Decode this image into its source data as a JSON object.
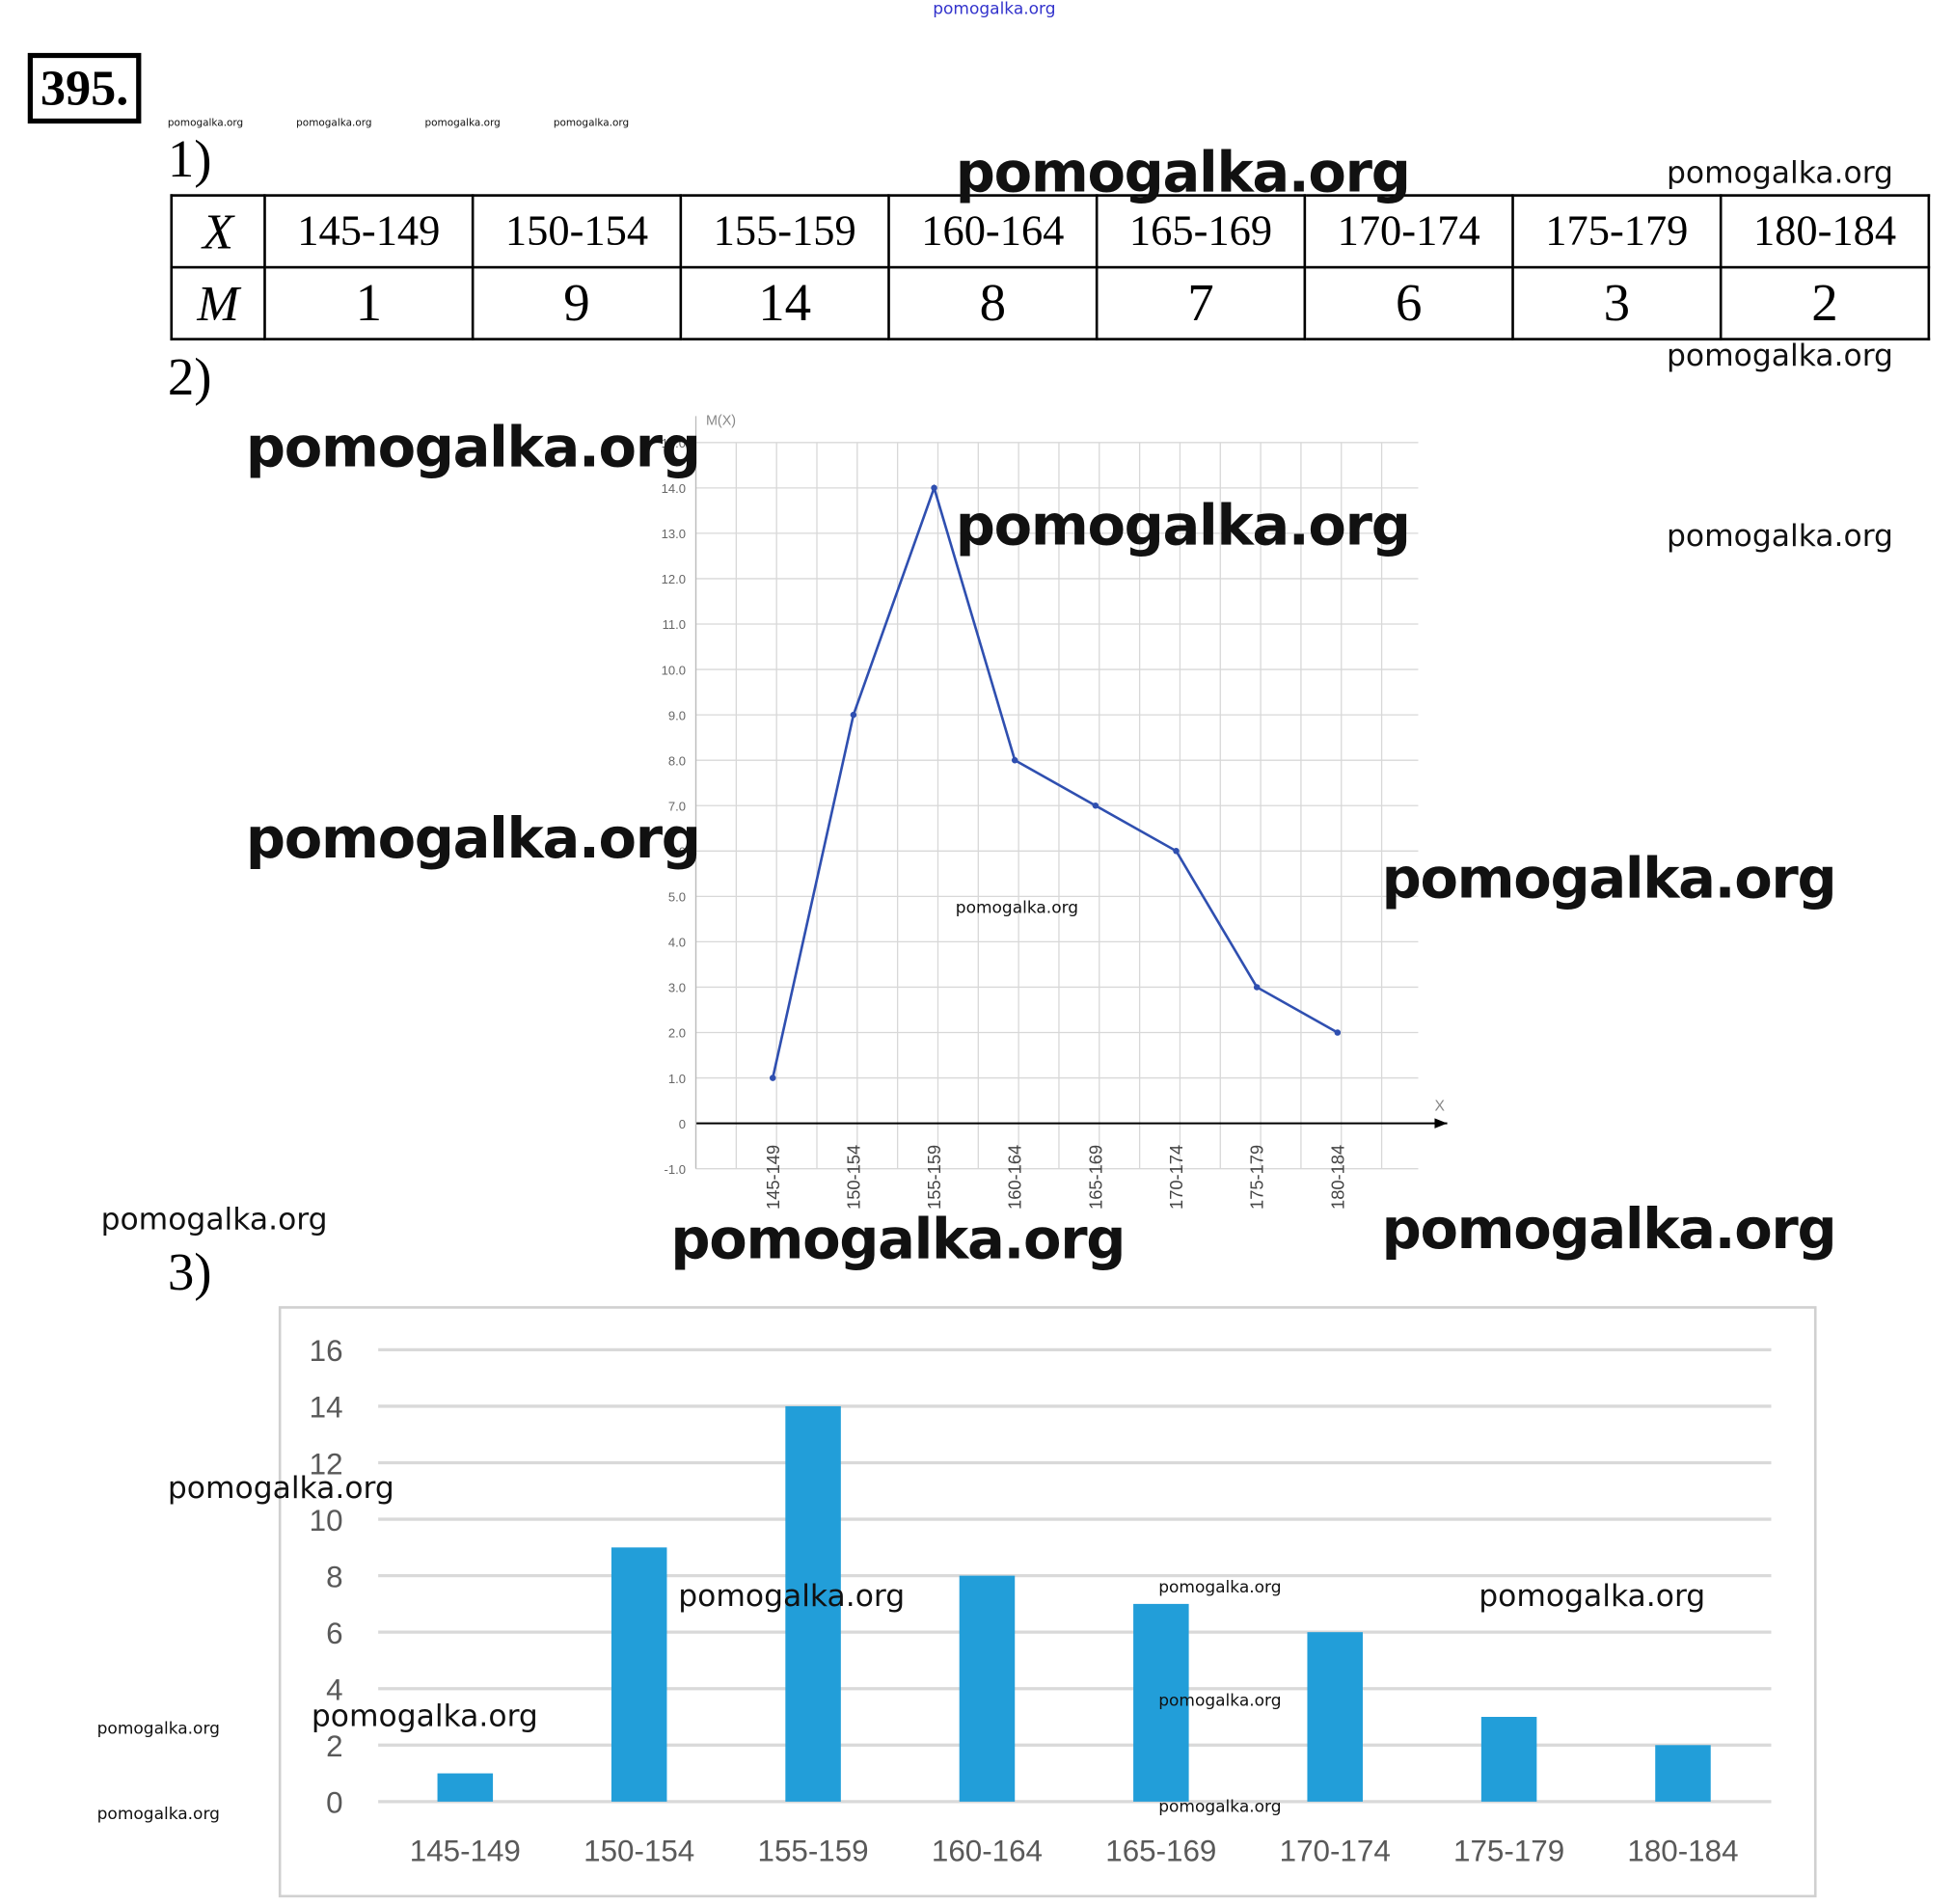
{
  "problem_number": "395.",
  "parts": [
    "1)",
    "2)",
    "3)"
  ],
  "table": {
    "row_x_label": "X",
    "row_m_label": "M",
    "intervals": [
      "145-149",
      "150-154",
      "155-159",
      "160-164",
      "165-169",
      "170-174",
      "175-179",
      "180-184"
    ],
    "counts": [
      1,
      9,
      14,
      8,
      7,
      6,
      3,
      2
    ]
  },
  "watermark": "pomogalka.org",
  "chart_data": [
    {
      "type": "line",
      "ylabel": "M(X)",
      "xlabel": "X",
      "categories": [
        "145-149",
        "150-154",
        "155-159",
        "160-164",
        "165-169",
        "170-174",
        "175-179",
        "180-184"
      ],
      "values": [
        1,
        9,
        14,
        8,
        7,
        6,
        3,
        2
      ],
      "ylim": [
        -1,
        15
      ],
      "yticks": [
        "-1.0",
        "0",
        "1.0",
        "2.0",
        "3.0",
        "4.0",
        "5.0",
        "6.0",
        "7.0",
        "8.0",
        "9.0",
        "10.0",
        "11.0",
        "12.0",
        "13.0",
        "14.0",
        "15.0"
      ],
      "grid": true,
      "color": "#2f4fb0"
    },
    {
      "type": "bar",
      "categories": [
        "145-149",
        "150-154",
        "155-159",
        "160-164",
        "165-169",
        "170-174",
        "175-179",
        "180-184"
      ],
      "values": [
        1,
        9,
        14,
        8,
        7,
        6,
        3,
        2
      ],
      "ylim": [
        0,
        16
      ],
      "yticks": [
        "0",
        "2",
        "4",
        "6",
        "8",
        "10",
        "12",
        "14",
        "16"
      ],
      "grid": true,
      "color": "#229ed9"
    }
  ]
}
